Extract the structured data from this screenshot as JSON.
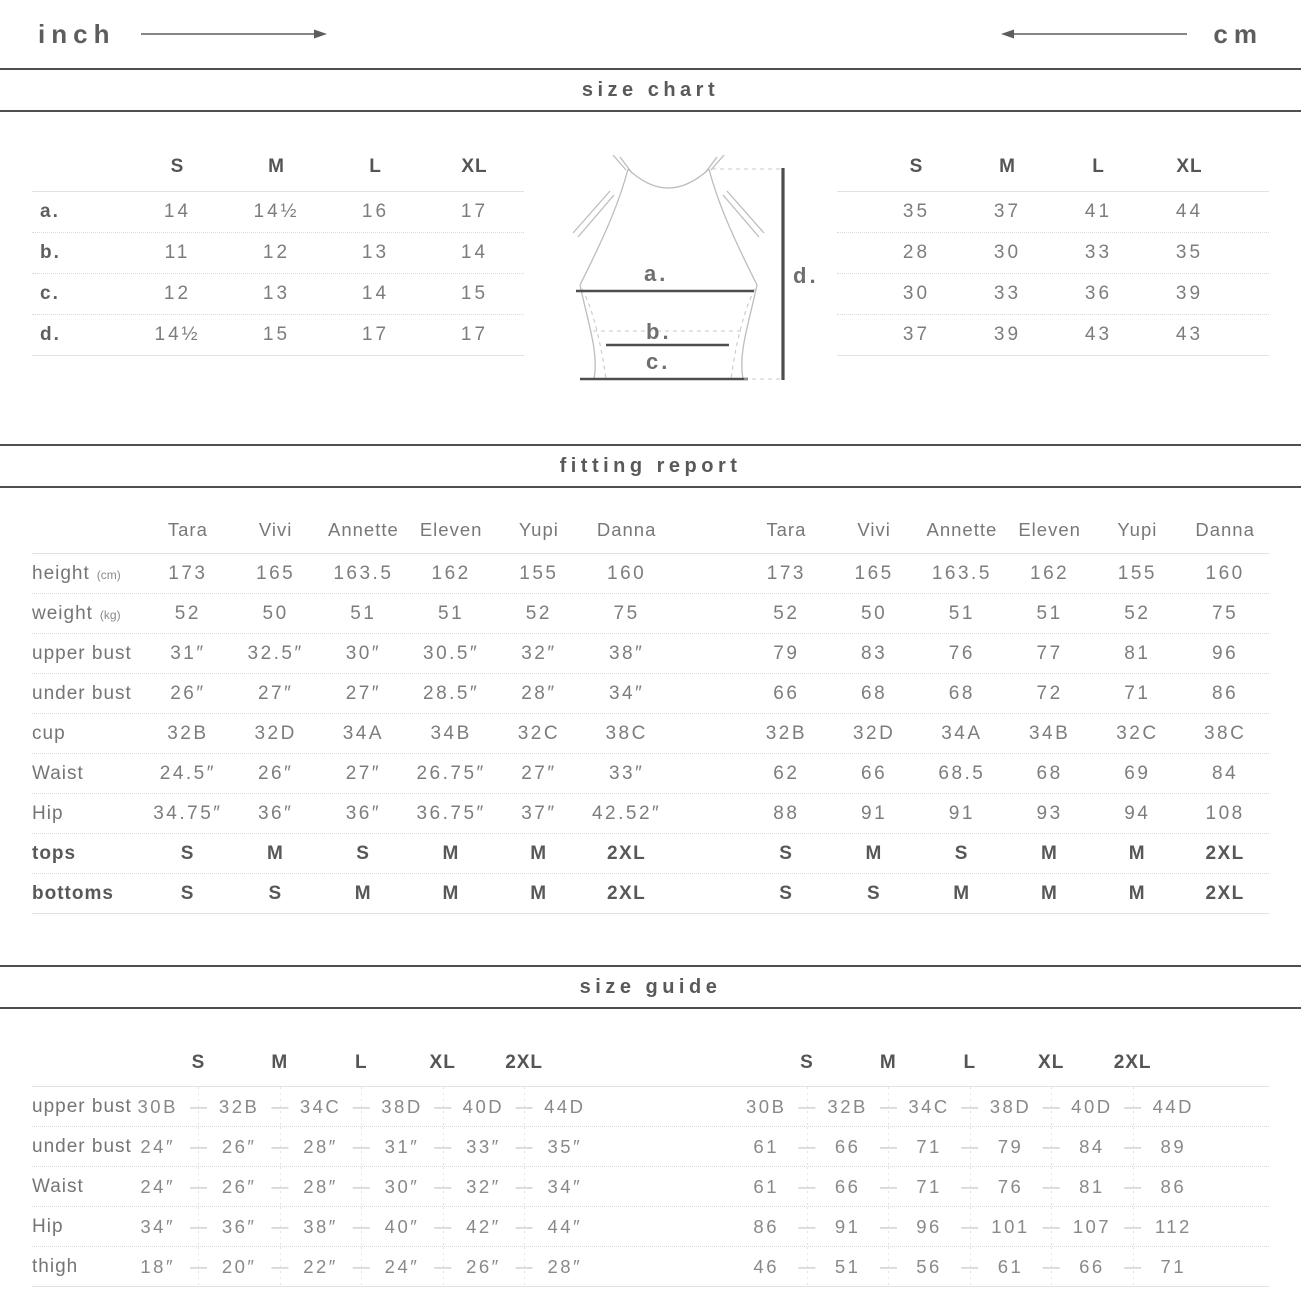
{
  "page": {
    "units": {
      "left": "inch",
      "right": "cm"
    }
  },
  "size_chart": {
    "title": "size chart",
    "sizes": [
      "S",
      "M",
      "L",
      "XL"
    ],
    "row_labels": [
      "a.",
      "b.",
      "c.",
      "d."
    ],
    "inch_rows": [
      [
        "14",
        "14½",
        "16",
        "17"
      ],
      [
        "11",
        "12",
        "13",
        "14"
      ],
      [
        "12",
        "13",
        "14",
        "15"
      ],
      [
        "14½",
        "15",
        "17",
        "17"
      ]
    ],
    "cm_rows": [
      [
        "35",
        "37",
        "41",
        "44"
      ],
      [
        "28",
        "30",
        "33",
        "35"
      ],
      [
        "30",
        "33",
        "36",
        "39"
      ],
      [
        "37",
        "39",
        "43",
        "43"
      ]
    ],
    "diagram": {
      "labels": {
        "a": "a.",
        "b": "b.",
        "c": "c.",
        "d": "d."
      }
    }
  },
  "fitting_report": {
    "title": "fitting report",
    "models": [
      "Tara",
      "Vivi",
      "Annette",
      "Eleven",
      "Yupi",
      "Danna"
    ],
    "rows": [
      {
        "label": "height",
        "unit": "(cm)",
        "inch": [
          "173",
          "165",
          "163.5",
          "162",
          "155",
          "160"
        ],
        "cm": [
          "173",
          "165",
          "163.5",
          "162",
          "155",
          "160"
        ]
      },
      {
        "label": "weight",
        "unit": "(kg)",
        "inch": [
          "52",
          "50",
          "51",
          "51",
          "52",
          "75"
        ],
        "cm": [
          "52",
          "50",
          "51",
          "51",
          "52",
          "75"
        ]
      },
      {
        "label": "upper bust",
        "unit": "",
        "inch": [
          "31″",
          "32.5″",
          "30″",
          "30.5″",
          "32″",
          "38″"
        ],
        "cm": [
          "79",
          "83",
          "76",
          "77",
          "81",
          "96"
        ]
      },
      {
        "label": "under bust",
        "unit": "",
        "inch": [
          "26″",
          "27″",
          "27″",
          "28.5″",
          "28″",
          "34″"
        ],
        "cm": [
          "66",
          "68",
          "68",
          "72",
          "71",
          "86"
        ]
      },
      {
        "label": "cup",
        "unit": "",
        "inch": [
          "32B",
          "32D",
          "34A",
          "34B",
          "32C",
          "38C"
        ],
        "cm": [
          "32B",
          "32D",
          "34A",
          "34B",
          "32C",
          "38C"
        ]
      },
      {
        "label": "Waist",
        "unit": "",
        "inch": [
          "24.5″",
          "26″",
          "27″",
          "26.75″",
          "27″",
          "33″"
        ],
        "cm": [
          "62",
          "66",
          "68.5",
          "68",
          "69",
          "84"
        ]
      },
      {
        "label": "Hip",
        "unit": "",
        "inch": [
          "34.75″",
          "36″",
          "36″",
          "36.75″",
          "37″",
          "42.52″"
        ],
        "cm": [
          "88",
          "91",
          "91",
          "93",
          "94",
          "108"
        ]
      },
      {
        "label": "tops",
        "unit": "",
        "inch": [
          "S",
          "M",
          "S",
          "M",
          "M",
          "2XL"
        ],
        "cm": [
          "S",
          "M",
          "S",
          "M",
          "M",
          "2XL"
        ]
      },
      {
        "label": "bottoms",
        "unit": "",
        "inch": [
          "S",
          "S",
          "M",
          "M",
          "M",
          "2XL"
        ],
        "cm": [
          "S",
          "S",
          "M",
          "M",
          "M",
          "2XL"
        ]
      }
    ]
  },
  "size_guide": {
    "title": "size guide",
    "sizes": [
      "S",
      "M",
      "L",
      "XL",
      "2XL"
    ],
    "dash": "—",
    "rows": [
      {
        "label": "upper bust",
        "inch": [
          "30B",
          "32B",
          "34C",
          "38D",
          "40D",
          "44D"
        ],
        "cm": [
          "30B",
          "32B",
          "34C",
          "38D",
          "40D",
          "44D"
        ]
      },
      {
        "label": "under bust",
        "inch": [
          "24″",
          "26″",
          "28″",
          "31″",
          "33″",
          "35″"
        ],
        "cm": [
          "61",
          "66",
          "71",
          "79",
          "84",
          "89"
        ]
      },
      {
        "label": "Waist",
        "inch": [
          "24″",
          "26″",
          "28″",
          "30″",
          "32″",
          "34″"
        ],
        "cm": [
          "61",
          "66",
          "71",
          "76",
          "81",
          "86"
        ]
      },
      {
        "label": "Hip",
        "inch": [
          "34″",
          "36″",
          "38″",
          "40″",
          "42″",
          "44″"
        ],
        "cm": [
          "86",
          "91",
          "96",
          "101",
          "107",
          "112"
        ]
      },
      {
        "label": "thigh",
        "inch": [
          "18″",
          "20″",
          "22″",
          "24″",
          "26″",
          "28″"
        ],
        "cm": [
          "46",
          "51",
          "56",
          "61",
          "66",
          "71"
        ]
      }
    ]
  }
}
